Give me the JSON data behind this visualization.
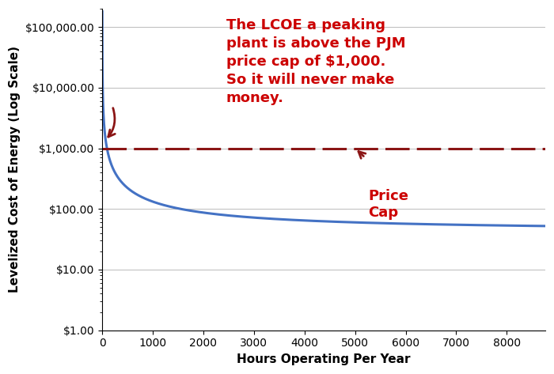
{
  "title": "",
  "xlabel": "Hours Operating Per Year",
  "ylabel": "Levelized Cost of Energy (Log Scale)",
  "xlim": [
    0,
    8760
  ],
  "ylim_log": [
    1.0,
    200000.0
  ],
  "price_cap": 1000.0,
  "annotation_text": "The LCOE a peaking\nplant is above the PJM\nprice cap of $1,000.\nSo it will never make\nmoney.",
  "price_cap_label": "Price\nCap",
  "curve_color": "#4472C4",
  "price_cap_color": "#8B1515",
  "annotation_color": "#CC0000",
  "background_color": "#FFFFFF",
  "fixed_cost": 90000,
  "variable_cost": 42,
  "ytick_labels": [
    "$1.00",
    "$10.00",
    "$100.00",
    "$1,000.00",
    "$10,000.00",
    "$100,000.00"
  ],
  "ytick_values": [
    1.0,
    10.0,
    100.0,
    1000.0,
    10000.0,
    100000.0
  ],
  "xtick_values": [
    0,
    1000,
    2000,
    3000,
    4000,
    5000,
    6000,
    7000,
    8000
  ],
  "curve_linewidth": 2.2,
  "price_cap_linewidth": 2.2,
  "grid_color": "#BBBBBB",
  "grid_linewidth": 0.7,
  "annotation_fontsize": 13,
  "label_fontsize": 11,
  "tick_fontsize": 10
}
